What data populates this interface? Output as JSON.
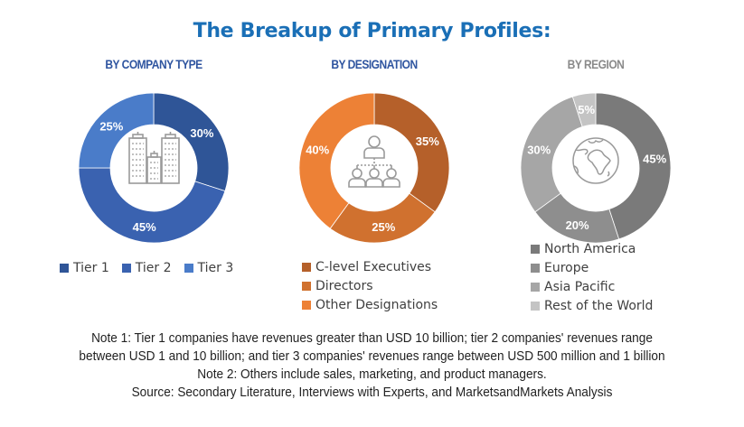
{
  "title": "The Breakup of Primary Profiles:",
  "chart_data": [
    {
      "type": "pie",
      "subtype": "donut",
      "title": "BY COMPANY TYPE",
      "categories": [
        "Tier 1",
        "Tier 2",
        "Tier 3"
      ],
      "values": [
        30,
        45,
        25
      ],
      "labels": [
        "30%",
        "45%",
        "25%"
      ],
      "colors": [
        "#2f5597",
        "#3a62b0",
        "#4a7cc9"
      ],
      "title_color": "#2f55a0",
      "center_icon": "buildings-icon",
      "legend_position": "bottom"
    },
    {
      "type": "pie",
      "subtype": "donut",
      "title": "BY DESIGNATION",
      "categories": [
        "C-level Executives",
        "Directors",
        "Other Designations"
      ],
      "values": [
        35,
        25,
        40
      ],
      "labels": [
        "35%",
        "25%",
        "40%"
      ],
      "colors": [
        "#b5602a",
        "#d0712f",
        "#ed8136"
      ],
      "title_color": "#2f55a0",
      "center_icon": "org-hierarchy-icon",
      "legend_position": "bottom"
    },
    {
      "type": "pie",
      "subtype": "donut",
      "title": "BY REGION",
      "categories": [
        "North America",
        "Europe",
        "Asia Pacific",
        "Rest of the World"
      ],
      "values": [
        45,
        20,
        30,
        5
      ],
      "labels": [
        "45%",
        "20%",
        "30%",
        "5%"
      ],
      "colors": [
        "#7a7a7a",
        "#8e8e8e",
        "#a6a6a6",
        "#c4c4c4"
      ],
      "title_color": "#8a8a8a",
      "center_icon": "globe-icon",
      "legend_position": "bottom"
    }
  ],
  "notes": [
    "Note 1: Tier 1 companies have revenues greater than USD 10 billion; tier 2 companies' revenues range",
    "between USD 1 and 10 billion; and tier 3 companies' revenues range between USD 500 million and 1 billion",
    "Note 2: Others include sales, marketing, and product managers.",
    "Source: Secondary Literature, Interviews with Experts, and MarketsandMarkets Analysis"
  ]
}
